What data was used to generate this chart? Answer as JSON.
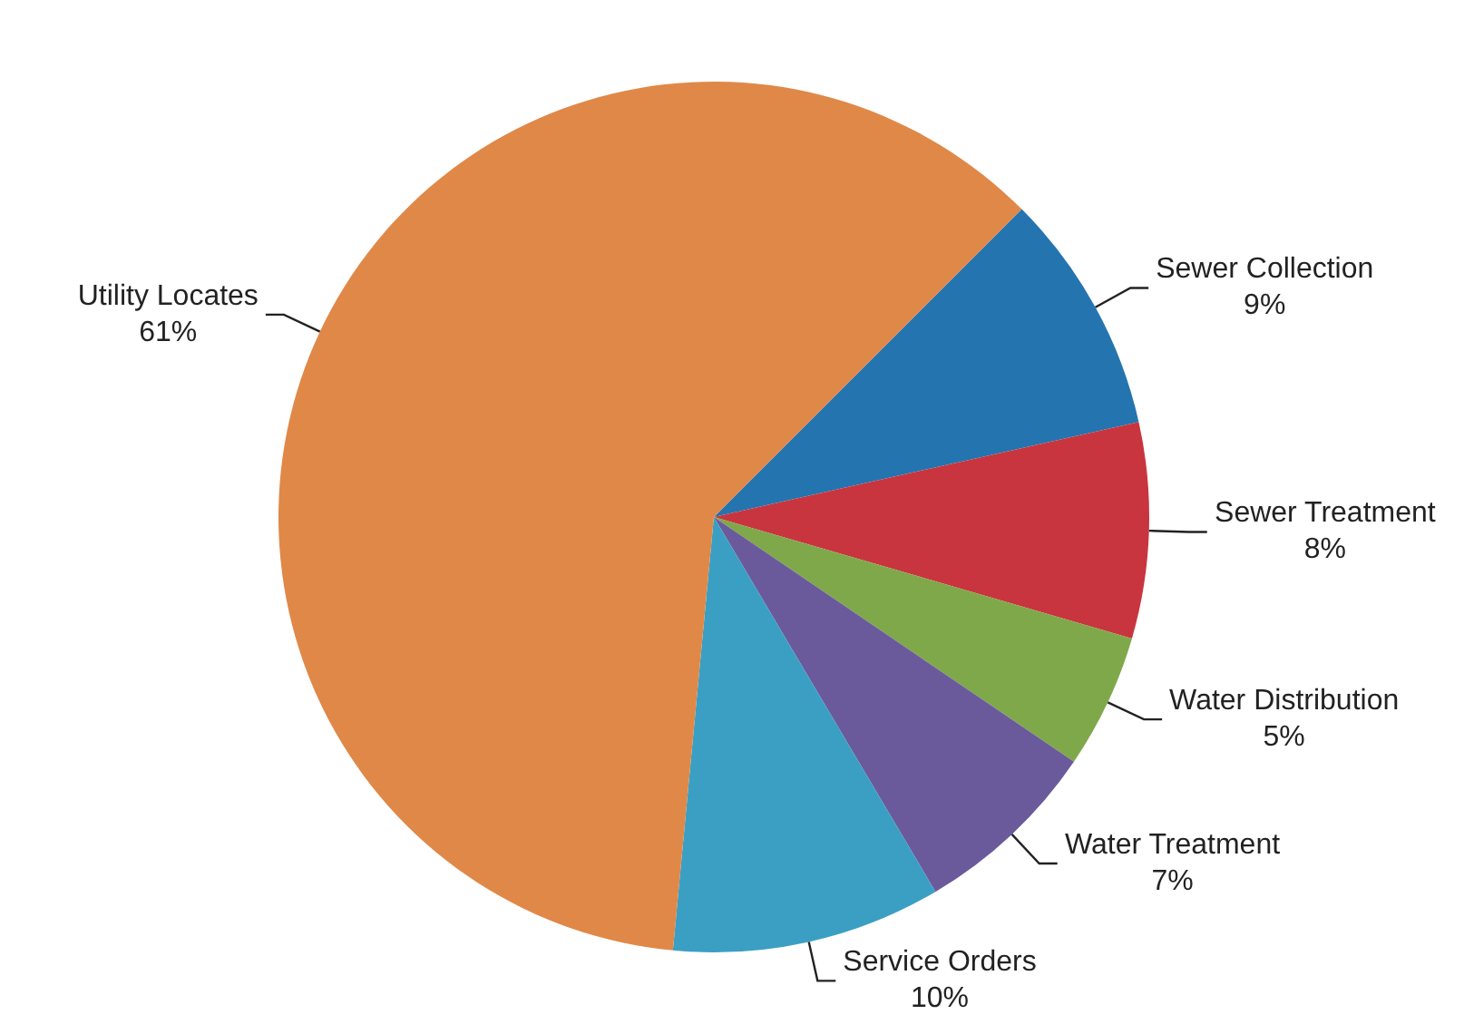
{
  "chart_data": {
    "type": "pie",
    "categories": [
      "Sewer Collection",
      "Sewer Treatment",
      "Water Distribution",
      "Water Treatment",
      "Service Orders",
      "Utility Locates"
    ],
    "values": [
      9,
      8,
      5,
      7,
      10,
      61
    ],
    "value_labels": [
      "9%",
      "8%",
      "5%",
      "7%",
      "10%",
      "61%"
    ],
    "colors": [
      "#2474b0",
      "#c8353e",
      "#7fa84a",
      "#6a5a9c",
      "#3b9fc3",
      "#e08848"
    ],
    "legend": false
  }
}
